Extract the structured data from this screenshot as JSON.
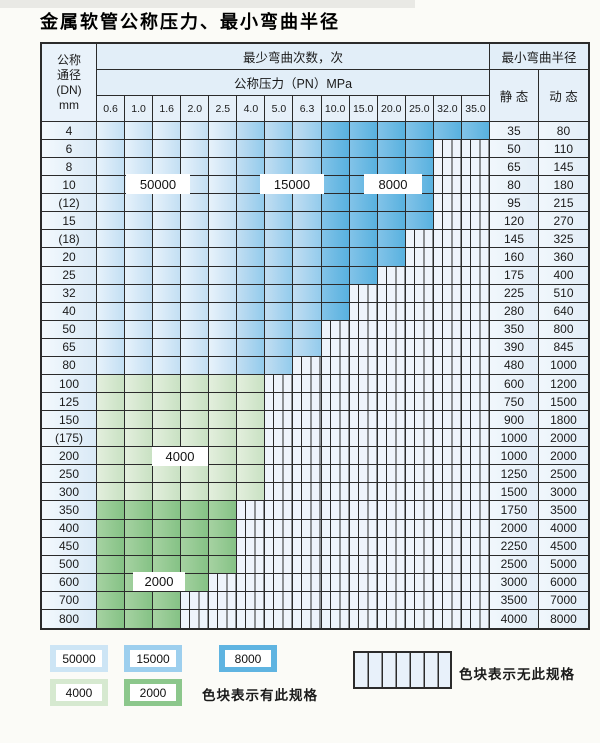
{
  "title": "金属软管公称压力、最小弯曲半径",
  "table": {
    "header": {
      "dn_lines": [
        "公称",
        "通径",
        "(DN)",
        "mm"
      ],
      "bend_cycles": "最少弯曲次数，次",
      "pressure": "公称压力（PN）MPa",
      "min_radius": "最小弯曲半径",
      "static": "静 态",
      "dynamic": "动 态",
      "pressures": [
        "0.6",
        "1.0",
        "1.6",
        "2.0",
        "2.5",
        "4.0",
        "5.0",
        "6.3",
        "10.0",
        "15.0",
        "20.0",
        "25.0",
        "32.0",
        "35.0"
      ]
    },
    "overlays": [
      {
        "label": "50000"
      },
      {
        "label": "15000"
      },
      {
        "label": "8000"
      },
      {
        "label": "4000"
      },
      {
        "label": "2000"
      }
    ],
    "rows": [
      {
        "dn": "4",
        "colored": 14,
        "scheme": "blue",
        "static": "35",
        "dynamic": "80"
      },
      {
        "dn": "6",
        "colored": 12,
        "scheme": "blue",
        "static": "50",
        "dynamic": "110"
      },
      {
        "dn": "8",
        "colored": 12,
        "scheme": "blue",
        "static": "65",
        "dynamic": "145"
      },
      {
        "dn": "10",
        "colored": 12,
        "scheme": "blue",
        "static": "80",
        "dynamic": "180"
      },
      {
        "dn": "(12)",
        "colored": 12,
        "scheme": "blue",
        "static": "95",
        "dynamic": "215"
      },
      {
        "dn": "15",
        "colored": 12,
        "scheme": "blue",
        "static": "120",
        "dynamic": "270"
      },
      {
        "dn": "(18)",
        "colored": 11,
        "scheme": "blue",
        "static": "145",
        "dynamic": "325"
      },
      {
        "dn": "20",
        "colored": 11,
        "scheme": "blue",
        "static": "160",
        "dynamic": "360"
      },
      {
        "dn": "25",
        "colored": 10,
        "scheme": "blue",
        "static": "175",
        "dynamic": "400"
      },
      {
        "dn": "32",
        "colored": 9,
        "scheme": "blue",
        "static": "225",
        "dynamic": "510"
      },
      {
        "dn": "40",
        "colored": 9,
        "scheme": "blue",
        "static": "280",
        "dynamic": "640"
      },
      {
        "dn": "50",
        "colored": 8,
        "scheme": "blue",
        "static": "350",
        "dynamic": "800"
      },
      {
        "dn": "65",
        "colored": 8,
        "scheme": "blue",
        "static": "390",
        "dynamic": "845"
      },
      {
        "dn": "80",
        "colored": 7,
        "scheme": "blue",
        "static": "480",
        "dynamic": "1000"
      },
      {
        "dn": "100",
        "colored": 6,
        "scheme": "green4000",
        "static": "600",
        "dynamic": "1200"
      },
      {
        "dn": "125",
        "colored": 6,
        "scheme": "green4000",
        "static": "750",
        "dynamic": "1500"
      },
      {
        "dn": "150",
        "colored": 6,
        "scheme": "green4000",
        "static": "900",
        "dynamic": "1800"
      },
      {
        "dn": "(175)",
        "colored": 6,
        "scheme": "green4000",
        "static": "1000",
        "dynamic": "2000"
      },
      {
        "dn": "200",
        "colored": 6,
        "scheme": "green4000",
        "static": "1000",
        "dynamic": "2000"
      },
      {
        "dn": "250",
        "colored": 6,
        "scheme": "green4000",
        "static": "1250",
        "dynamic": "2500"
      },
      {
        "dn": "300",
        "colored": 6,
        "scheme": "green4000",
        "static": "1500",
        "dynamic": "3000"
      },
      {
        "dn": "350",
        "colored": 5,
        "scheme": "green2000",
        "static": "1750",
        "dynamic": "3500"
      },
      {
        "dn": "400",
        "colored": 5,
        "scheme": "green2000",
        "static": "2000",
        "dynamic": "4000"
      },
      {
        "dn": "450",
        "colored": 5,
        "scheme": "green2000",
        "static": "2250",
        "dynamic": "4500"
      },
      {
        "dn": "500",
        "colored": 5,
        "scheme": "green2000",
        "static": "2500",
        "dynamic": "5000"
      },
      {
        "dn": "600",
        "colored": 4,
        "scheme": "green2000",
        "static": "3000",
        "dynamic": "6000"
      },
      {
        "dn": "700",
        "colored": 3,
        "scheme": "green2000",
        "static": "3500",
        "dynamic": "7000"
      },
      {
        "dn": "800",
        "colored": 3,
        "scheme": "green2000",
        "static": "4000",
        "dynamic": "8000"
      }
    ]
  },
  "legend": {
    "chips": [
      {
        "label": "50000",
        "color": "#cde5f5"
      },
      {
        "label": "15000",
        "color": "#9dcfee"
      },
      {
        "label": "8000",
        "color": "#5fb4e1"
      },
      {
        "label": "4000",
        "color": "#d6e9d0"
      },
      {
        "label": "2000",
        "color": "#8cc78c"
      }
    ],
    "has_spec": "色块表示有此规格",
    "no_spec": "色块表示无此规格"
  },
  "colors": {
    "band_50000": [
      "#e7f2fb",
      "#c3dff3"
    ],
    "band_15000": [
      "#c2def2",
      "#93cbec"
    ],
    "band_8000": [
      "#82c3e8",
      "#58b1df"
    ],
    "band_4000": [
      "#e3efdd",
      "#c9e1c3"
    ],
    "band_2000": [
      "#a6d2a2",
      "#85c285"
    ],
    "grid_line": "#2b2b2b",
    "hatch_bg": "#eef4fb"
  }
}
